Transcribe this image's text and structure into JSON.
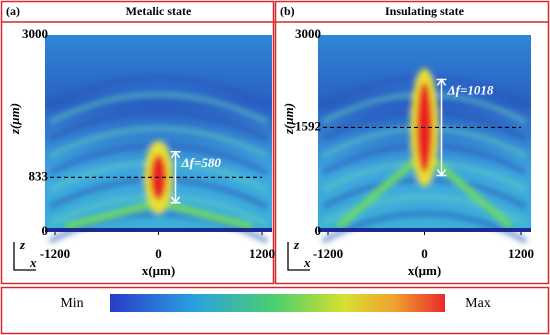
{
  "chart_data": [
    {
      "type": "field",
      "panel": "(a)",
      "title": "Metalic state",
      "x_label": "x(μm)",
      "y_label": "z(μm)",
      "xlim": [
        -1200,
        1200
      ],
      "ylim": [
        0,
        3000
      ],
      "xticks": [
        -1200,
        0,
        1200
      ],
      "yticks": [
        0,
        833,
        3000
      ],
      "annotation": "Δf=580",
      "axis_icon": {
        "z": "z",
        "x": "x"
      }
    },
    {
      "type": "field",
      "panel": "(b)",
      "title": "Insulating state",
      "x_label": "x(μm)",
      "y_label": "z(μm)",
      "xlim": [
        -1200,
        1200
      ],
      "ylim": [
        0,
        3000
      ],
      "xticks": [
        -1200,
        0,
        1200
      ],
      "yticks": [
        0,
        1592,
        3000
      ],
      "annotation": "Δf=1018",
      "axis_icon": {
        "z": "z",
        "x": "x"
      }
    }
  ],
  "colorbar": {
    "min_label": "Min",
    "max_label": "Max"
  }
}
